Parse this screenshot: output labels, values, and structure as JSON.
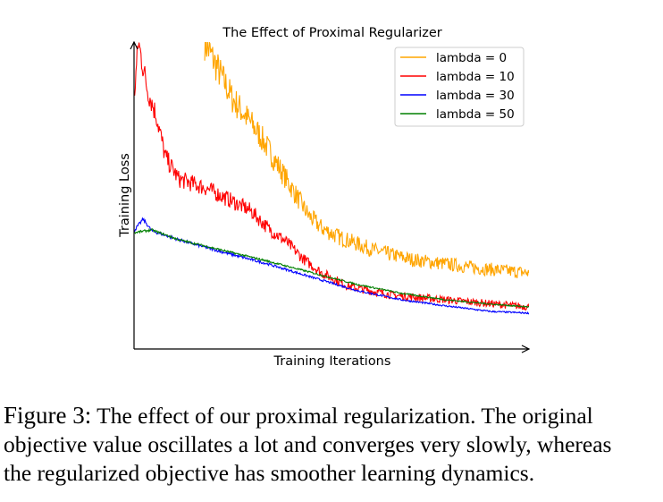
{
  "chart_data": {
    "type": "line",
    "title": "The Effect of Proximal Regularizer",
    "xlabel": "Training Iterations",
    "ylabel": "Training Loss",
    "xlim": [
      0,
      100
    ],
    "ylim": [
      0,
      100
    ],
    "grid": false,
    "ticks": false,
    "legend_position": "top-right",
    "series": [
      {
        "name": "lambda = 0",
        "color": "#ffa500",
        "x": [
          17.9,
          24.9,
          31.7,
          38.5,
          44.1,
          47.5,
          52,
          61,
          70,
          79,
          88,
          100
        ],
        "y": [
          100,
          81.6,
          70,
          55.4,
          43.7,
          39.4,
          36.4,
          32.1,
          29.2,
          27.7,
          26.2,
          24.8
        ]
      },
      {
        "name": "lambda = 10",
        "color": "#ff0000",
        "x": [
          0,
          1.1,
          3.4,
          5.7,
          7.9,
          11.3,
          18.1,
          24.9,
          29.4,
          33.9,
          38.5,
          43,
          47.5,
          54.3,
          65.6,
          79.2,
          100
        ],
        "y": [
          81.6,
          100,
          84.5,
          75.8,
          62.7,
          55.4,
          52.5,
          48.1,
          45.2,
          39.4,
          35,
          29.2,
          24.8,
          20.4,
          17.5,
          16,
          13.7
        ]
      },
      {
        "name": "lambda = 30",
        "color": "#0000ff",
        "x": [
          0,
          2.3,
          4.5,
          11.3,
          22.6,
          33.9,
          45.2,
          56.6,
          67.9,
          79.2,
          90.5,
          100
        ],
        "y": [
          38.5,
          42.3,
          38.5,
          35.6,
          31.5,
          27.7,
          23.3,
          19,
          16,
          14,
          12.2,
          11.7
        ]
      },
      {
        "name": "lambda = 50",
        "color": "#008000",
        "x": [
          0,
          4.5,
          11.3,
          22.6,
          33.9,
          45.2,
          56.6,
          67.9,
          79.2,
          90.5,
          100
        ],
        "y": [
          37.9,
          38.8,
          35.6,
          32.1,
          28.6,
          24.8,
          21,
          18.1,
          16,
          14.6,
          13.7
        ]
      }
    ]
  },
  "caption": {
    "label": "Figure 3:",
    "line1": " The effect of our proximal regularization. The original",
    "line2": "objective value oscillates a lot and converges very slowly, whereas",
    "line3": "the regularized objective has smoother learning dynamics."
  }
}
